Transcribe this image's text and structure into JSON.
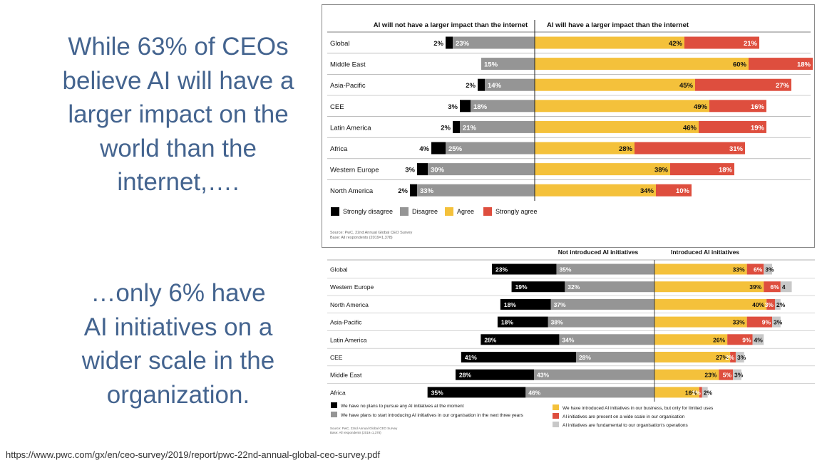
{
  "headline_1": [
    "While 63% of CEOs",
    "believe AI will have a",
    "larger impact on the",
    "world than the",
    "internet,…."
  ],
  "headline_2": [
    "…only 6% have",
    "AI initiatives on a",
    "wider scale in the",
    "organization."
  ],
  "source_url": "https://www.pwc.com/gx/en/ceo-survey/2019/report/pwc-22nd-annual-global-ceo-survey.pdf",
  "colors": {
    "strongly_disagree": "#000000",
    "disagree": "#959595",
    "agree": "#f4c13b",
    "strongly_agree": "#de4e3e",
    "fundamental": "#c8c8c8"
  },
  "chart_data": [
    {
      "type": "bar",
      "orientation": "horizontal-diverging",
      "header_left": "AI will not have a larger impact than the internet",
      "header_right": "AI will have a larger impact than the internet",
      "categories": [
        "Global",
        "Middle East",
        "Asia-Pacific",
        "CEE",
        "Latin America",
        "Africa",
        "Western Europe",
        "North America"
      ],
      "series": [
        {
          "name": "Strongly disagree",
          "side": "left",
          "values": [
            2,
            null,
            2,
            3,
            2,
            4,
            3,
            2
          ]
        },
        {
          "name": "Disagree",
          "side": "left",
          "values": [
            23,
            15,
            14,
            18,
            21,
            25,
            30,
            33
          ]
        },
        {
          "name": "Agree",
          "side": "right",
          "values": [
            42,
            60,
            45,
            49,
            46,
            28,
            38,
            34
          ]
        },
        {
          "name": "Strongly agree",
          "side": "right",
          "values": [
            21,
            18,
            27,
            16,
            19,
            31,
            18,
            10
          ]
        }
      ],
      "unit": "%",
      "source": "Source: PwC, 22nd Annual Global CEO Survey",
      "base": "Base: All respondents (2019=1,378)"
    },
    {
      "type": "bar",
      "orientation": "horizontal-diverging",
      "header_left": "Not introduced AI initiatives",
      "header_right": "Introduced AI initiatives",
      "categories": [
        "Global",
        "Western Europe",
        "North America",
        "Asia-Pacific",
        "Latin America",
        "CEE",
        "Middle East",
        "Africa"
      ],
      "series": [
        {
          "name": "We have no plans to pursue any AI initiatives at the moment",
          "side": "left",
          "values": [
            23,
            19,
            18,
            18,
            28,
            41,
            28,
            35
          ]
        },
        {
          "name": "We have plans to start introducing AI initiatives in our organisation in the next three years",
          "side": "left",
          "values": [
            35,
            32,
            37,
            38,
            34,
            28,
            43,
            46
          ]
        },
        {
          "name": "We have introduced AI initiatives in our business, but only for limited uses",
          "side": "right",
          "values": [
            33,
            39,
            40,
            33,
            26,
            27,
            23,
            16
          ]
        },
        {
          "name": "AI initiatives are present on a wide scale in our organisation",
          "side": "right",
          "values": [
            6,
            6,
            3,
            9,
            9,
            2,
            5,
            1
          ]
        },
        {
          "name": "AI initiatives are fundamental to our organisation's operations",
          "side": "right",
          "values": [
            3,
            4,
            2,
            3,
            4,
            3,
            3,
            2
          ]
        }
      ],
      "value_labels": [
        [
          "23%",
          "35%",
          "33%",
          "6%",
          "3%"
        ],
        [
          "19%",
          "32%",
          "39%",
          "6%",
          "4"
        ],
        [
          "18%",
          "37%",
          "40%",
          "3%",
          "2%"
        ],
        [
          "18%",
          "38%",
          "33%",
          "9%",
          "3%"
        ],
        [
          "28%",
          "34%",
          "26%",
          "9%",
          "4%"
        ],
        [
          "41%",
          "28%",
          "27%",
          "2%",
          "3%"
        ],
        [
          "28%",
          "43%",
          "23%",
          "5%",
          "3%"
        ],
        [
          "35%",
          "46%",
          "16%",
          "1%",
          "2%"
        ]
      ],
      "unit": "%",
      "source": "Source: PwC, 22nd Annual Global CEO Survey",
      "base": "Base: All respondents (2019=1,378)"
    }
  ]
}
